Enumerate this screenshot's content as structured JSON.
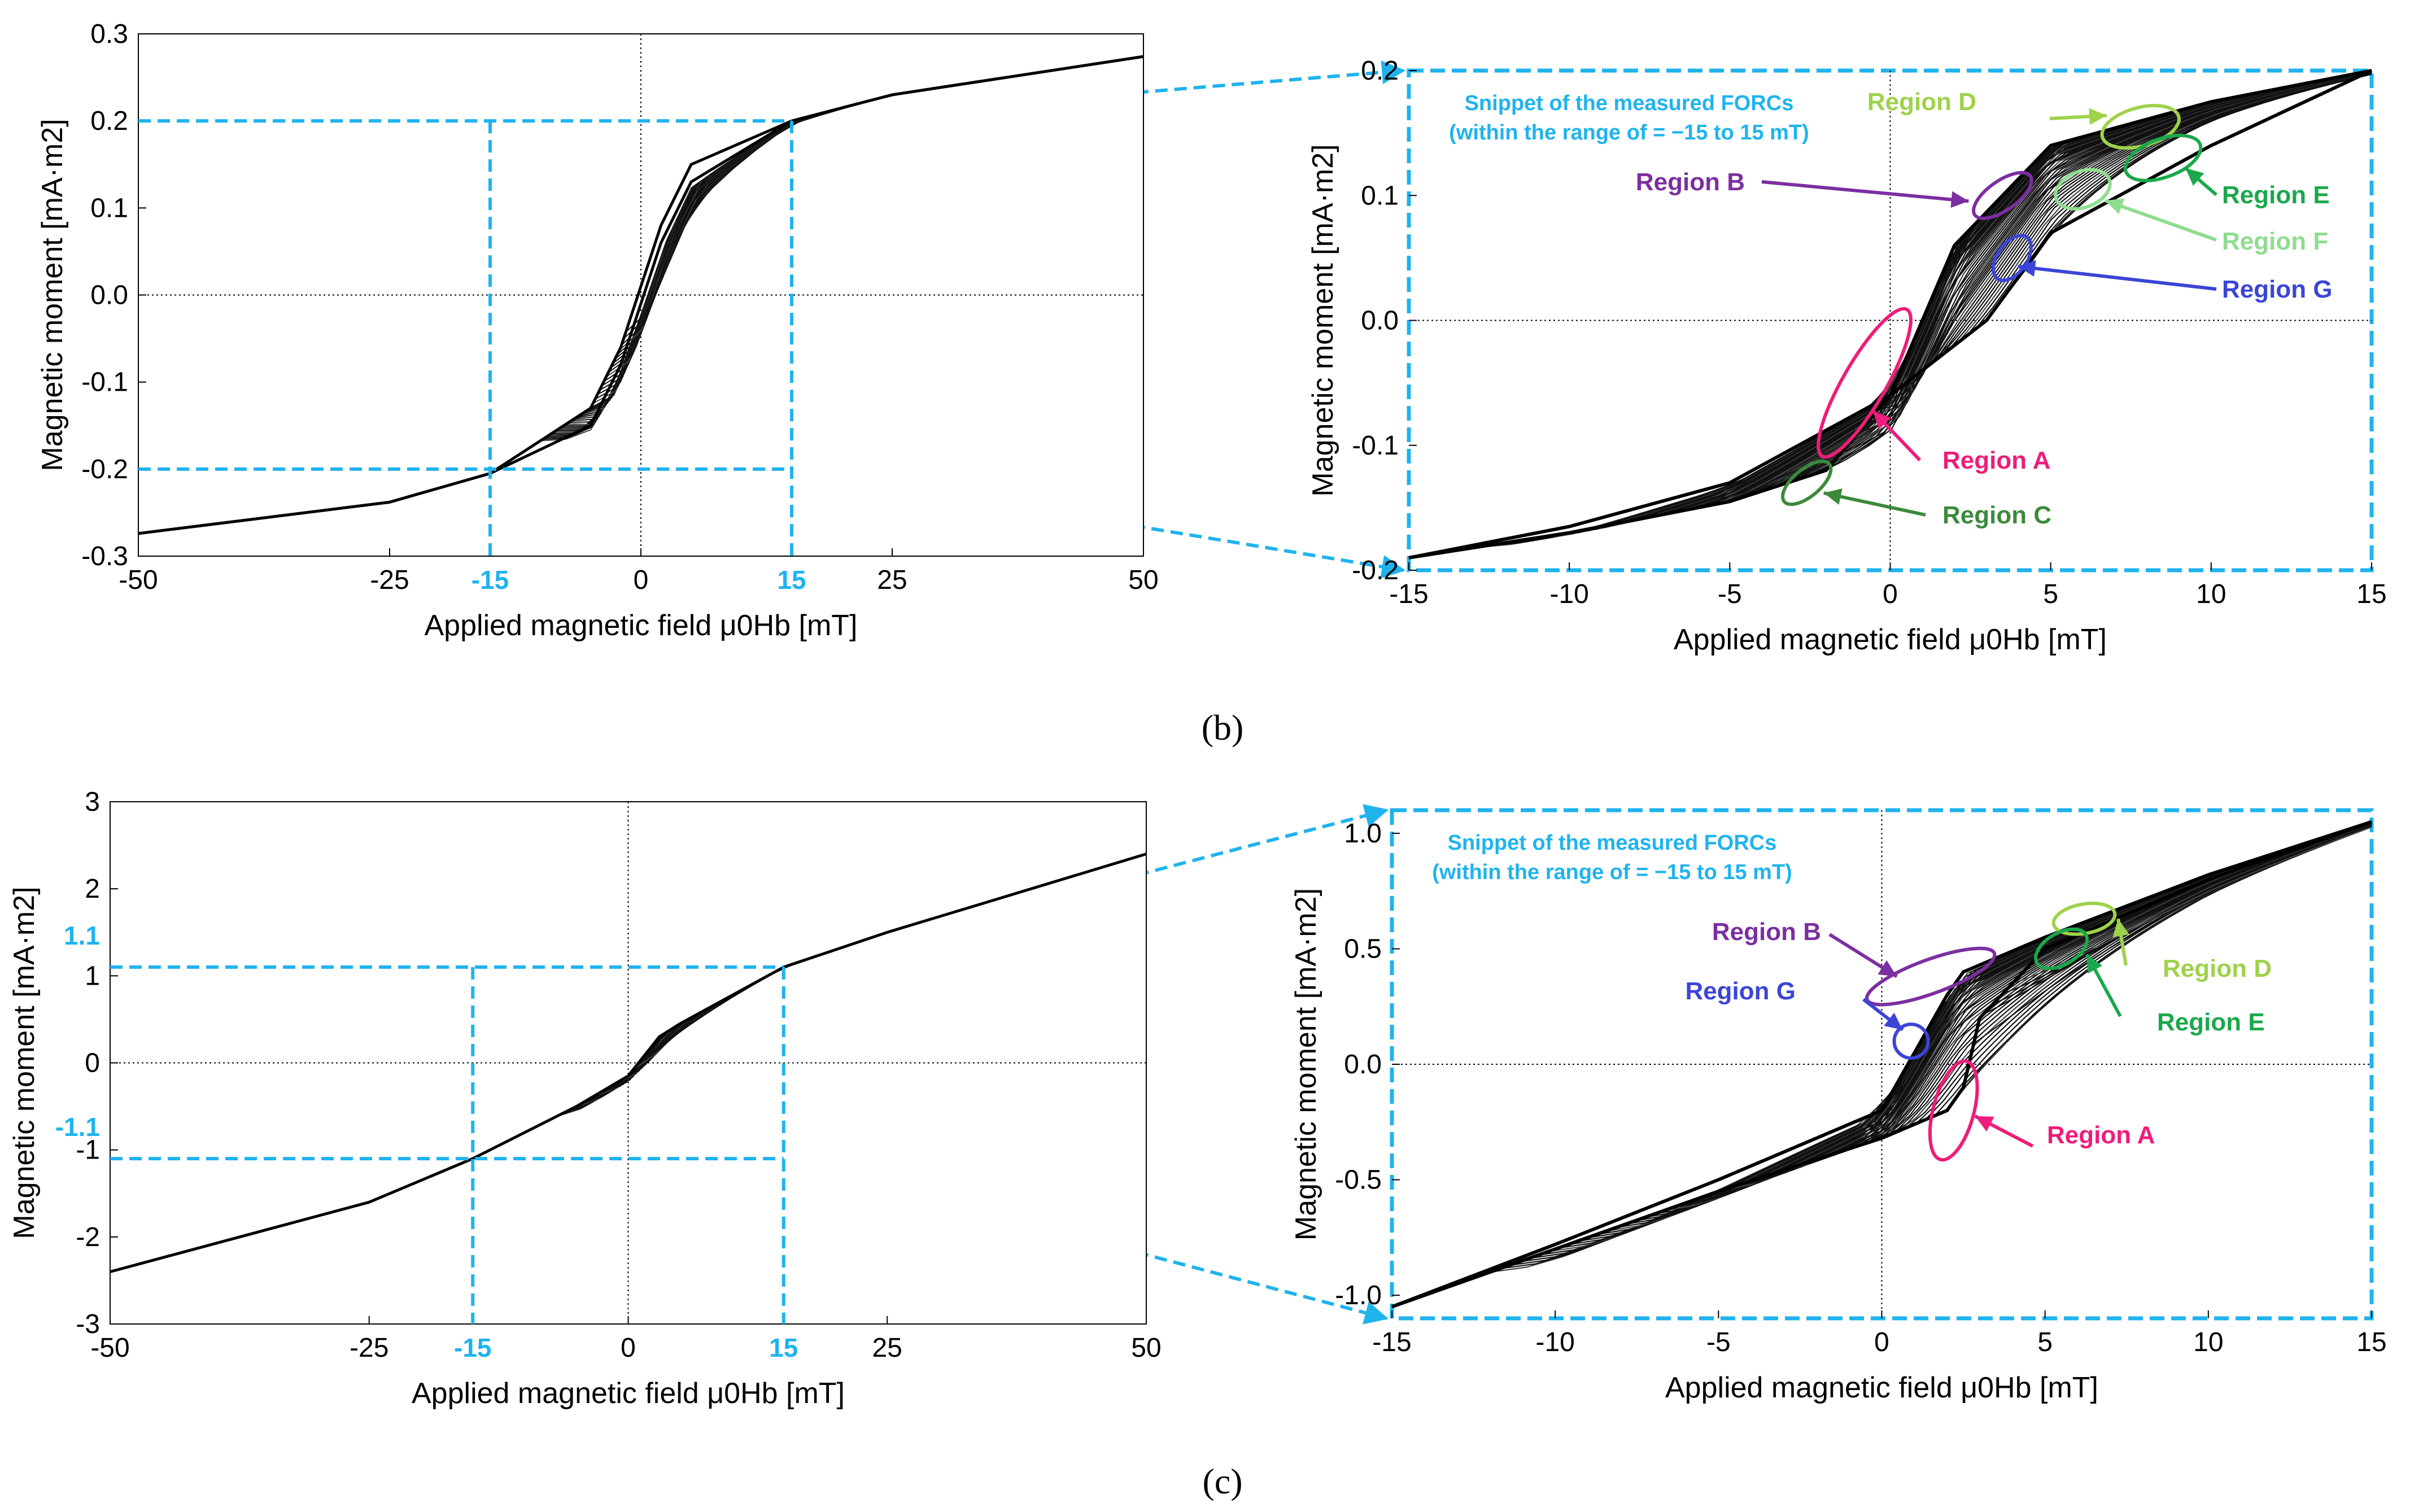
{
  "colors": {
    "cyan": "#1fb3ee",
    "curve": "#000000",
    "region_A": "#ee1c7b",
    "region_B": "#7b2fa0",
    "region_C": "#3b8a3b",
    "region_D": "#9ed24a",
    "region_E": "#1aa84b",
    "region_F": "#8fdc8f",
    "region_G": "#3b45d6"
  },
  "captions": {
    "b": "(b)",
    "c": "(c)"
  },
  "chart_data": [
    {
      "id": "b-full",
      "type": "line",
      "title": "",
      "xlabel": "Applied magnetic field μ0Hb [mT]",
      "ylabel": "Magnetic moment [mA·m2]",
      "xlim": [
        -50,
        50
      ],
      "ylim": [
        -0.3,
        0.3
      ],
      "xticks": [
        "-50",
        "-25",
        "0",
        "25",
        "50"
      ],
      "highlight_xticks": [
        "-15",
        "15"
      ],
      "yticks": [
        "0.3",
        "0.2",
        "0.1",
        "0.0",
        "-0.1",
        "-0.2",
        "-0.3"
      ],
      "zoom_box": {
        "x": [
          -15,
          15
        ],
        "y": [
          -0.2,
          0.2
        ]
      },
      "series": [
        {
          "name": "upper branch",
          "x": [
            -50,
            -25,
            -15,
            -5,
            -2,
            0,
            2,
            5,
            15,
            25,
            50
          ],
          "values": [
            -0.274,
            -0.238,
            -0.205,
            -0.15,
            -0.08,
            -0.01,
            0.06,
            0.13,
            0.2,
            0.23,
            0.274
          ]
        },
        {
          "name": "lower branch",
          "x": [
            -50,
            -25,
            -15,
            -5,
            -2,
            0,
            2,
            5,
            15,
            25,
            50
          ],
          "values": [
            -0.274,
            -0.238,
            -0.205,
            -0.13,
            -0.06,
            0.01,
            0.08,
            0.15,
            0.2,
            0.23,
            0.274
          ]
        }
      ]
    },
    {
      "id": "b-zoom",
      "type": "line",
      "title": "Snippet of the measured FORCs (within the range of = −15 to 15 mT)",
      "title_lines": [
        "Snippet of the measured FORCs",
        "(within the range of  = −15 to 15 mT)"
      ],
      "xlabel": "Applied magnetic field μ0Hb [mT]",
      "ylabel": "Magnetic moment [mA·m2]",
      "xlim": [
        -15,
        15
      ],
      "ylim": [
        -0.2,
        0.2
      ],
      "xticks": [
        "-15",
        "-10",
        "-5",
        "0",
        "5",
        "10",
        "15"
      ],
      "yticks": [
        "0.2",
        "0.1",
        "0.0",
        "-0.1",
        "-0.2"
      ],
      "series": [
        {
          "name": "major loop upper",
          "x": [
            -15,
            -10,
            -5,
            0,
            2,
            5,
            10,
            15
          ],
          "values": [
            -0.19,
            -0.165,
            -0.13,
            -0.06,
            0.06,
            0.14,
            0.175,
            0.2
          ]
        },
        {
          "name": "major loop lower",
          "x": [
            -15,
            -10,
            -5,
            -2,
            0,
            3,
            5,
            10,
            15
          ],
          "values": [
            -0.19,
            -0.17,
            -0.145,
            -0.12,
            -0.06,
            0.0,
            0.07,
            0.14,
            0.2
          ]
        }
      ],
      "annotations": [
        {
          "label": "Region A",
          "color": "#ee1c7b",
          "target": [
            -0.8,
            -0.05
          ]
        },
        {
          "label": "Region B",
          "color": "#7b2fa0",
          "target": [
            3.5,
            0.1
          ]
        },
        {
          "label": "Region C",
          "color": "#3b8a3b",
          "target": [
            -2.6,
            -0.13
          ]
        },
        {
          "label": "Region D",
          "color": "#9ed24a",
          "target": [
            7.8,
            0.155
          ]
        },
        {
          "label": "Region E",
          "color": "#1aa84b",
          "target": [
            8.5,
            0.13
          ]
        },
        {
          "label": "Region F",
          "color": "#8fdc8f",
          "target": [
            6.0,
            0.105
          ]
        },
        {
          "label": "Region G",
          "color": "#3b45d6",
          "target": [
            3.8,
            0.05
          ]
        }
      ]
    },
    {
      "id": "c-full",
      "type": "line",
      "title": "",
      "xlabel": "Applied magnetic field μ0Hb [mT]",
      "ylabel": "Magnetic moment [mA·m2]",
      "xlim": [
        -50,
        50
      ],
      "ylim": [
        -3,
        3
      ],
      "xticks": [
        "-50",
        "-25",
        "0",
        "25",
        "50"
      ],
      "highlight_xticks": [
        "-15",
        "15"
      ],
      "yticks": [
        "3",
        "2",
        "1",
        "0",
        "-1",
        "-2",
        "-3"
      ],
      "highlight_yticks": [
        "1.1",
        "-1.1"
      ],
      "zoom_box": {
        "x": [
          -15,
          15
        ],
        "y": [
          -1.1,
          1.1
        ]
      },
      "series": [
        {
          "name": "branch",
          "x": [
            -50,
            -25,
            -15,
            -5,
            0,
            3,
            5,
            15,
            25,
            50
          ],
          "values": [
            -2.4,
            -1.6,
            -1.1,
            -0.5,
            -0.15,
            0.3,
            0.45,
            1.1,
            1.5,
            2.4
          ]
        }
      ]
    },
    {
      "id": "c-zoom",
      "type": "line",
      "title": "Snippet of the measured FORCs (within the range of = −15 to 15 mT)",
      "title_lines": [
        "Snippet of the measured FORCs",
        "(within the range of  = −15 to 15 mT)"
      ],
      "xlabel": "Applied magnetic field μ0Hb [mT]",
      "ylabel": "Magnetic moment [mA·m2]",
      "xlim": [
        -15,
        15
      ],
      "ylim": [
        -1.1,
        1.1
      ],
      "xticks": [
        "-15",
        "-10",
        "-5",
        "0",
        "5",
        "10",
        "15"
      ],
      "yticks": [
        "1.0",
        "0.5",
        "0.0",
        "-0.5",
        "-1.0"
      ],
      "series": [
        {
          "name": "major loop upper",
          "x": [
            -15,
            -10,
            -5,
            0,
            2,
            2.5,
            5,
            10,
            15
          ],
          "values": [
            -1.05,
            -0.78,
            -0.5,
            -0.2,
            0.3,
            0.4,
            0.55,
            0.82,
            1.05
          ]
        },
        {
          "name": "major loop lower",
          "x": [
            -15,
            -10,
            -5,
            0,
            2,
            2.5,
            3,
            5,
            10,
            15
          ],
          "values": [
            -1.05,
            -0.8,
            -0.55,
            -0.32,
            -0.2,
            -0.1,
            0.2,
            0.5,
            0.8,
            1.05
          ]
        }
      ],
      "annotations": [
        {
          "label": "Region A",
          "color": "#ee1c7b",
          "target": [
            2.2,
            -0.2
          ]
        },
        {
          "label": "Region B",
          "color": "#7b2fa0",
          "target": [
            1.5,
            0.38
          ]
        },
        {
          "label": "Region D",
          "color": "#9ed24a",
          "target": [
            6.2,
            0.63
          ]
        },
        {
          "label": "Region E",
          "color": "#1aa84b",
          "target": [
            5.5,
            0.5
          ]
        },
        {
          "label": "Region G",
          "color": "#3b45d6",
          "target": [
            0.9,
            0.1
          ]
        }
      ]
    }
  ]
}
